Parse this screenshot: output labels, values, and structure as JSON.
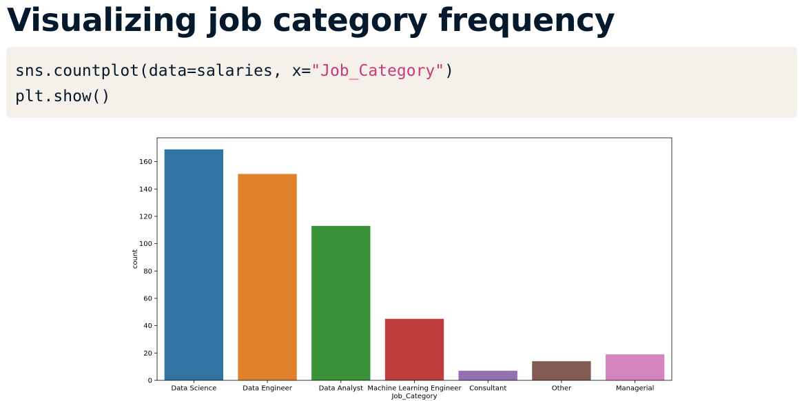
{
  "slide": {
    "title": "Visualizing job category frequency"
  },
  "code": {
    "line1_prefix": "sns.countplot(data=salaries, x=",
    "line1_string": "\"Job_Category\"",
    "line1_suffix": ")",
    "line2": "plt.show()"
  },
  "colors": {
    "title": "#05192d",
    "code_bg": "#f5f1ea",
    "code_string": "#c93a78"
  },
  "chart_data": {
    "type": "bar",
    "categories": [
      "Data Science",
      "Data Engineer",
      "Data Analyst",
      "Machine Learning Engineer",
      "Consultant",
      "Other",
      "Managerial"
    ],
    "values": [
      169,
      151,
      113,
      45,
      7,
      14,
      19
    ],
    "colors": [
      "#3274a1",
      "#e1812c",
      "#3a923a",
      "#c03d3e",
      "#9372b2",
      "#845b53",
      "#d684bd"
    ],
    "xlabel": "Job_Category",
    "ylabel": "count",
    "yticks": [
      0,
      20,
      40,
      60,
      80,
      100,
      120,
      140,
      160
    ],
    "ylim": [
      0,
      177.45
    ],
    "grid": false
  }
}
